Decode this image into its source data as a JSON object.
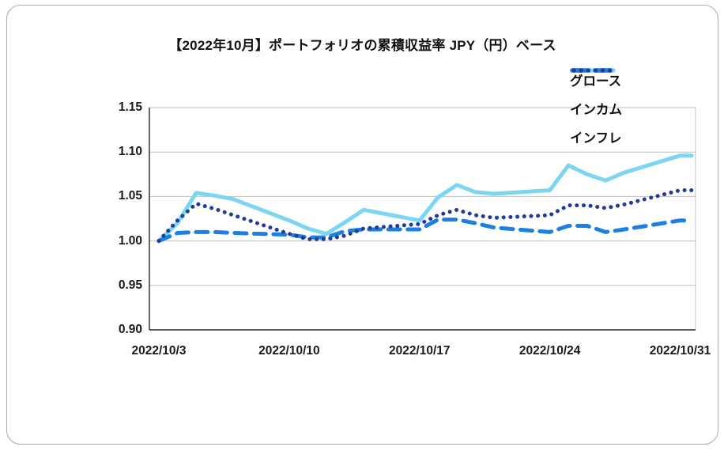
{
  "chart": {
    "title": "【2022年10月】ポートフォリオの累積収益率 JPY（円）ベース"
  },
  "chart_data": {
    "type": "line",
    "title": "【2022年10月】ポートフォリオの累積収益率 JPY（円）ベース",
    "x": [
      "2022/10/3",
      "2022/10/4",
      "2022/10/5",
      "2022/10/6",
      "2022/10/7",
      "2022/10/10",
      "2022/10/11",
      "2022/10/12",
      "2022/10/13",
      "2022/10/14",
      "2022/10/17",
      "2022/10/18",
      "2022/10/19",
      "2022/10/20",
      "2022/10/21",
      "2022/10/24",
      "2022/10/25",
      "2022/10/26",
      "2022/10/27",
      "2022/10/28",
      "2022/10/31"
    ],
    "x_scale": "date-daily-linear",
    "series": [
      {
        "name": "グロース",
        "style": "solid",
        "color": "#7CD6F2",
        "values": [
          1.0,
          1.02,
          1.054,
          1.051,
          1.047,
          1.023,
          1.014,
          1.008,
          1.021,
          1.035,
          1.023,
          1.049,
          1.063,
          1.055,
          1.053,
          1.057,
          1.085,
          1.075,
          1.068,
          1.077,
          1.096
        ]
      },
      {
        "name": "インカム",
        "style": "dashed",
        "color": "#1E7FE3",
        "values": [
          1.0,
          1.009,
          1.01,
          1.01,
          1.009,
          1.007,
          1.004,
          1.004,
          1.011,
          1.013,
          1.013,
          1.024,
          1.024,
          1.02,
          1.015,
          1.01,
          1.017,
          1.017,
          1.01,
          1.013,
          1.023
        ]
      },
      {
        "name": "インフレ",
        "style": "dotted",
        "color": "#203D9A",
        "values": [
          1.0,
          1.023,
          1.042,
          1.036,
          1.029,
          1.008,
          1.002,
          1.002,
          1.006,
          1.014,
          1.019,
          1.029,
          1.035,
          1.029,
          1.026,
          1.029,
          1.04,
          1.04,
          1.037,
          1.041,
          1.057
        ]
      }
    ],
    "ylim": [
      0.9,
      1.15
    ],
    "ytick_labels": [
      "0.90",
      "0.95",
      "1.00",
      "1.05",
      "1.10",
      "1.15"
    ],
    "xtick_labels": [
      "2022/10/3",
      "2022/10/10",
      "2022/10/17",
      "2022/10/24",
      "2022/10/31"
    ],
    "grid": "horizontal",
    "legend_position": "top-right",
    "colors": {
      "grid": "#BFBFBF",
      "axis": "#262626",
      "card_border": "#A9A9A9",
      "text": "#111111"
    }
  }
}
